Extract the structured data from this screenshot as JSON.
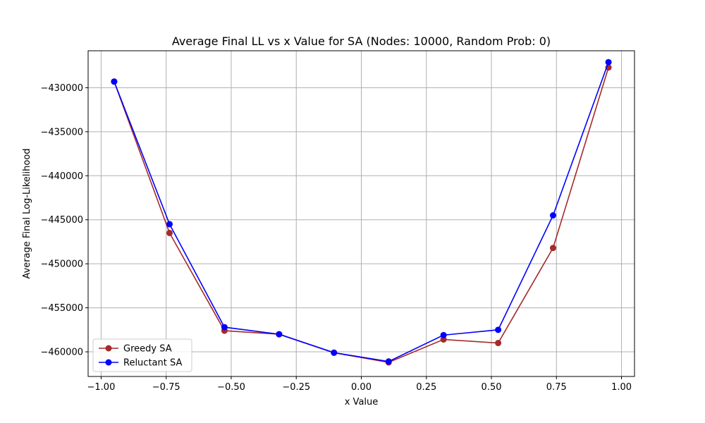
{
  "chart_data": {
    "type": "line",
    "title": "Average Final LL vs x Value for SA (Nodes: 10000, Random Prob: 0)",
    "xlabel": "x Value",
    "ylabel": "Average Final Log-Likelihood",
    "xlim": [
      -1.05,
      1.05
    ],
    "ylim": [
      -462800,
      -425800
    ],
    "xticks": [
      -1.0,
      -0.75,
      -0.5,
      -0.25,
      0.0,
      0.25,
      0.5,
      0.75,
      1.0
    ],
    "xtick_labels": [
      "−1.00",
      "−0.75",
      "−0.50",
      "−0.25",
      "0.00",
      "0.25",
      "0.50",
      "0.75",
      "1.00"
    ],
    "yticks": [
      -460000,
      -455000,
      -450000,
      -445000,
      -440000,
      -435000,
      -430000
    ],
    "ytick_labels": [
      "−460000",
      "−455000",
      "−450000",
      "−445000",
      "−440000",
      "−435000",
      "−430000"
    ],
    "grid": true,
    "legend_position": "bottom-left",
    "x": [
      -0.95,
      -0.737,
      -0.526,
      -0.316,
      -0.105,
      0.105,
      0.316,
      0.526,
      0.737,
      0.95
    ],
    "series": [
      {
        "name": "Greedy SA",
        "color": "#a52a2a",
        "values": [
          -429300,
          -446500,
          -457600,
          -458000,
          -460100,
          -461200,
          -458600,
          -459000,
          -448200,
          -427700
        ]
      },
      {
        "name": "Reluctant SA",
        "color": "#0000ff",
        "values": [
          -429300,
          -445500,
          -457200,
          -458000,
          -460100,
          -461100,
          -458100,
          -457500,
          -444500,
          -427100
        ]
      }
    ]
  }
}
